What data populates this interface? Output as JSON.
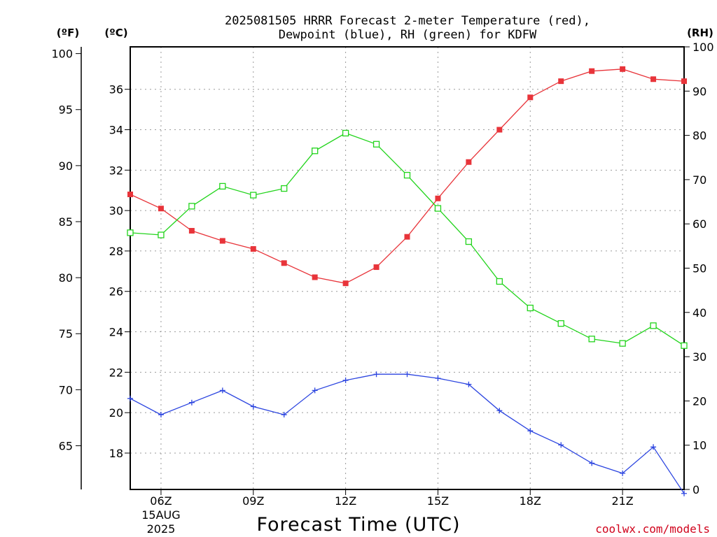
{
  "chart_data": {
    "type": "line",
    "title_line1": "2025081505 HRRR Forecast 2-meter Temperature (red),",
    "title_line2": "Dewpoint (blue), RH (green) for KDFW",
    "xlabel": "Forecast Time (UTC)",
    "credit": "coolwx.com/models",
    "units": {
      "fahrenheit": "(ºF)",
      "celsius": "(ºC)",
      "rh": "(RH)"
    },
    "x": [
      5,
      6,
      7,
      8,
      9,
      10,
      11,
      12,
      13,
      14,
      15,
      16,
      17,
      18,
      19,
      20,
      21,
      22,
      23
    ],
    "xlim": [
      5,
      23
    ],
    "x_ticks": [
      {
        "x": 6,
        "label": "06Z",
        "sub1": "15AUG",
        "sub2": "2025"
      },
      {
        "x": 9,
        "label": "09Z"
      },
      {
        "x": 12,
        "label": "12Z"
      },
      {
        "x": 15,
        "label": "15Z"
      },
      {
        "x": 18,
        "label": "18Z"
      },
      {
        "x": 21,
        "label": "21Z"
      }
    ],
    "celsius_axis": {
      "lim": [
        16.2,
        38.1
      ],
      "ticks": [
        18,
        20,
        22,
        24,
        26,
        28,
        30,
        32,
        34,
        36
      ]
    },
    "fahrenheit_axis": {
      "lim": [
        61.1,
        100.6
      ],
      "ticks": [
        65,
        70,
        75,
        80,
        85,
        90,
        95,
        100
      ]
    },
    "rh_axis": {
      "lim": [
        0,
        100
      ],
      "ticks": [
        0,
        10,
        20,
        30,
        40,
        50,
        60,
        70,
        80,
        90,
        100
      ]
    },
    "series": [
      {
        "key": "temperature",
        "axis": "celsius",
        "color": "#e8343a",
        "marker": "filled-square",
        "values": [
          30.8,
          30.1,
          29.0,
          28.5,
          28.1,
          27.4,
          26.7,
          26.4,
          27.2,
          28.7,
          30.6,
          32.4,
          34.0,
          35.6,
          36.4,
          36.9,
          37.0,
          36.5,
          36.4
        ]
      },
      {
        "key": "dewpoint",
        "axis": "celsius",
        "color": "#2c45e0",
        "marker": "plus",
        "values": [
          20.7,
          19.9,
          20.5,
          21.1,
          20.3,
          19.9,
          21.1,
          21.6,
          21.9,
          21.9,
          21.7,
          21.4,
          20.1,
          19.1,
          18.4,
          17.5,
          17.0,
          18.3,
          16.0
        ]
      },
      {
        "key": "rh",
        "axis": "rh",
        "color": "#22d41c",
        "marker": "open-square",
        "values": [
          58,
          57.5,
          64,
          68.5,
          66.5,
          68,
          76.5,
          80.5,
          78,
          71,
          63.5,
          56,
          47,
          41,
          37.5,
          34,
          33,
          37,
          32.5
        ]
      }
    ],
    "grid": true
  }
}
